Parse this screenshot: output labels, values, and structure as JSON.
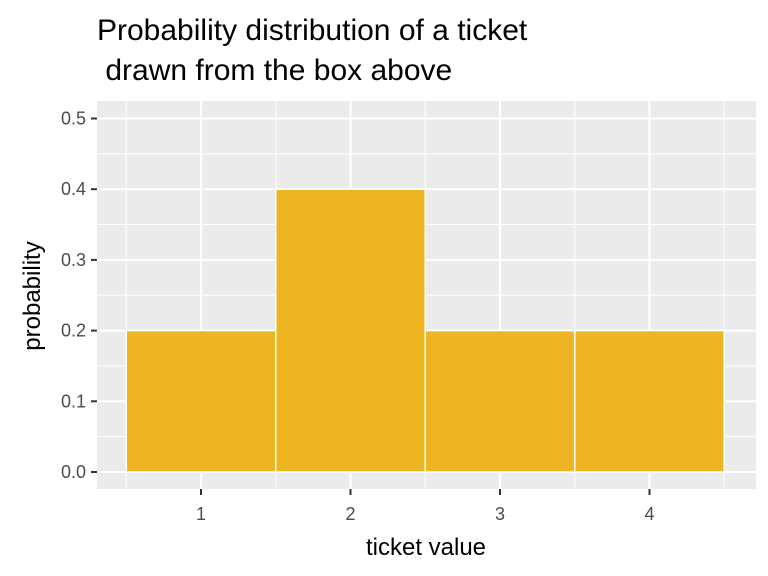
{
  "chart_data": {
    "type": "bar",
    "title_lines": [
      "Probability distribution of a ticket",
      " drawn from the box above"
    ],
    "xlabel": "ticket value",
    "ylabel": "probability",
    "categories": [
      "1",
      "2",
      "3",
      "4"
    ],
    "values": [
      0.2,
      0.4,
      0.2,
      0.2
    ],
    "ylim": [
      0,
      0.5
    ],
    "y_ticks": [
      0.0,
      0.1,
      0.2,
      0.3,
      0.4,
      0.5
    ],
    "y_tick_labels": [
      "0.0",
      "0.1",
      "0.2",
      "0.3",
      "0.4",
      "0.5"
    ],
    "grid": true,
    "bar_color": "#EDB521",
    "panel_background": "#EBEBEB",
    "grid_color": "#FFFFFF"
  }
}
